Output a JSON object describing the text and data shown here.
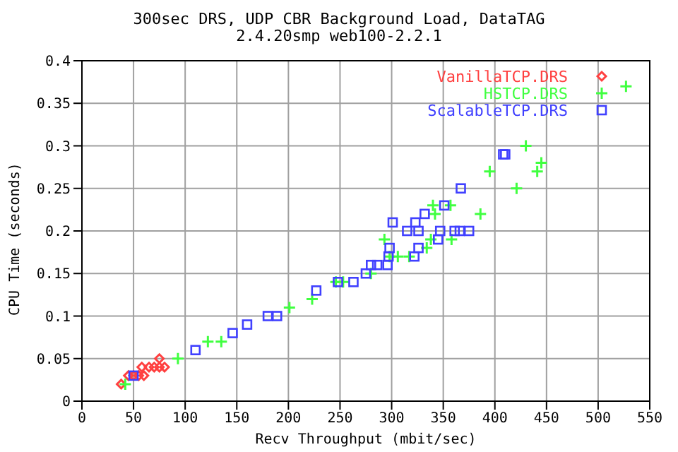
{
  "chart_data": {
    "type": "scatter",
    "title": "300sec DRS, UDP CBR Background Load, DataTAG",
    "subtitle": "2.4.20smp web100-2.2.1",
    "xlabel": "Recv Throughput (mbit/sec)",
    "ylabel": "CPU Time (seconds)",
    "xlim": [
      0,
      550
    ],
    "xticks": [
      0,
      50,
      100,
      150,
      200,
      250,
      300,
      350,
      400,
      450,
      500,
      550
    ],
    "ylim": [
      0,
      0.4
    ],
    "yticks": [
      0,
      0.05,
      0.1,
      0.15,
      0.2,
      0.25,
      0.3,
      0.35,
      0.4
    ],
    "grid": true,
    "legend": "top right",
    "series": [
      {
        "name": "VanillaTCP.DRS",
        "color": "#ff4040",
        "marker": "diamond",
        "x": [
          38,
          45,
          50,
          55,
          58,
          60,
          65,
          70,
          75,
          80,
          75
        ],
        "values": [
          0.02,
          0.03,
          0.03,
          0.03,
          0.04,
          0.03,
          0.04,
          0.04,
          0.04,
          0.04,
          0.05
        ]
      },
      {
        "name": "HSTCP.DRS",
        "color": "#40ff40",
        "marker": "cross",
        "x": [
          42,
          93,
          122,
          135,
          201,
          223,
          246,
          253,
          280,
          293,
          298,
          306,
          317,
          334,
          338,
          340,
          342,
          357,
          358,
          386,
          395,
          421,
          430,
          441,
          445,
          527
        ],
        "values": [
          0.02,
          0.05,
          0.07,
          0.07,
          0.11,
          0.12,
          0.14,
          0.14,
          0.15,
          0.19,
          0.17,
          0.17,
          0.17,
          0.18,
          0.19,
          0.23,
          0.22,
          0.23,
          0.19,
          0.22,
          0.27,
          0.25,
          0.3,
          0.27,
          0.28,
          0.37
        ]
      },
      {
        "name": "ScalableTCP.DRS",
        "color": "#4040ff",
        "marker": "square",
        "x": [
          50,
          110,
          146,
          160,
          180,
          189,
          227,
          248,
          263,
          275,
          280,
          286,
          296,
          297,
          298,
          301,
          315,
          322,
          323,
          326,
          326,
          332,
          345,
          347,
          351,
          361,
          366,
          367,
          375,
          408,
          410
        ],
        "values": [
          0.03,
          0.06,
          0.08,
          0.09,
          0.1,
          0.1,
          0.13,
          0.14,
          0.14,
          0.15,
          0.16,
          0.16,
          0.16,
          0.17,
          0.18,
          0.21,
          0.2,
          0.17,
          0.21,
          0.2,
          0.18,
          0.22,
          0.19,
          0.2,
          0.23,
          0.2,
          0.2,
          0.25,
          0.2,
          0.29,
          0.29
        ]
      }
    ]
  }
}
